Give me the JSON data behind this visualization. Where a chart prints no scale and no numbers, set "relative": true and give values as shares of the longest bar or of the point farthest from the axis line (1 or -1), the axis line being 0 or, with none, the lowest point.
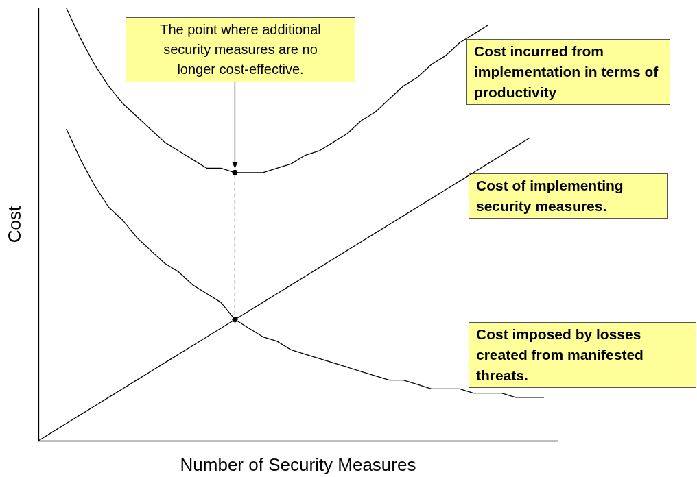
{
  "chart_data": {
    "type": "line",
    "relative": true,
    "xlabel": "Number of Security Measures",
    "ylabel": "Cost",
    "grid": false,
    "legend": false,
    "marker": "none",
    "line_style": "solid",
    "categories": [
      null,
      null,
      null,
      null,
      null,
      null,
      null,
      null,
      null,
      null,
      null,
      null,
      null,
      null,
      null,
      null,
      null,
      null,
      null,
      null,
      null,
      null,
      null,
      null,
      null,
      null,
      null,
      null,
      null,
      null,
      null,
      null,
      null,
      null,
      null,
      null,
      null,
      null
    ],
    "series": [
      {
        "name": "Cost incurred from implementation in terms of productivity",
        "color": "#000000",
        "values": [
          null,
          null,
          1.0,
          0.93,
          0.87,
          0.82,
          0.78,
          0.75,
          0.72,
          0.69,
          0.67,
          0.65,
          0.63,
          0.63,
          0.62,
          0.62,
          0.62,
          0.63,
          0.64,
          0.66,
          0.67,
          0.69,
          0.71,
          0.74,
          0.76,
          0.79,
          0.82,
          0.84,
          0.87,
          0.89,
          0.92,
          0.94,
          0.96,
          null,
          null,
          null,
          null,
          null
        ]
      },
      {
        "name": "Cost of implementing security measures.",
        "color": "#000000",
        "values": [
          0,
          0.02,
          0.04,
          0.06,
          0.08,
          0.1,
          0.12,
          0.14,
          0.16,
          0.18,
          0.2,
          0.22,
          0.24,
          0.26,
          0.28,
          0.3,
          0.32,
          0.34,
          0.36,
          0.38,
          0.4,
          0.42,
          0.44,
          0.46,
          0.48,
          0.5,
          0.52,
          0.54,
          0.56,
          0.58,
          0.6,
          0.62,
          0.64,
          0.66,
          0.68,
          0.7,
          null,
          null
        ]
      },
      {
        "name": "Cost imposed by losses created from manifested threats.",
        "color": "#000000",
        "values": [
          null,
          null,
          0.72,
          0.65,
          0.59,
          0.54,
          0.51,
          0.47,
          0.44,
          0.41,
          0.39,
          0.36,
          0.34,
          0.32,
          0.28,
          0.26,
          0.24,
          0.23,
          0.21,
          0.2,
          0.19,
          0.18,
          0.17,
          0.16,
          0.15,
          0.14,
          0.14,
          0.13,
          0.12,
          0.12,
          0.12,
          0.11,
          0.11,
          0.11,
          0.1,
          0.1,
          0.1,
          null
        ]
      },
      {
        "marker": "circle",
        "color": "#000000",
        "values": [
          null,
          null,
          null,
          null,
          null,
          null,
          null,
          null,
          null,
          null,
          null,
          null,
          null,
          null,
          0.62,
          null,
          null,
          null,
          null,
          null,
          null,
          null,
          null,
          null,
          null,
          null,
          null,
          null,
          null,
          null,
          null,
          null,
          null,
          null,
          null,
          null,
          null,
          null
        ]
      },
      {
        "marker": "circle",
        "color": "#000000",
        "values": [
          null,
          null,
          null,
          null,
          null,
          null,
          null,
          null,
          null,
          null,
          null,
          null,
          null,
          null,
          0.28,
          null,
          null,
          null,
          null,
          null,
          null,
          null,
          null,
          null,
          null,
          null,
          null,
          null,
          null,
          null,
          null,
          null,
          null,
          null,
          null,
          null,
          null,
          null
        ]
      }
    ],
    "annotations": [
      "The point where additional security measures are no longer cost-effective."
    ]
  }
}
